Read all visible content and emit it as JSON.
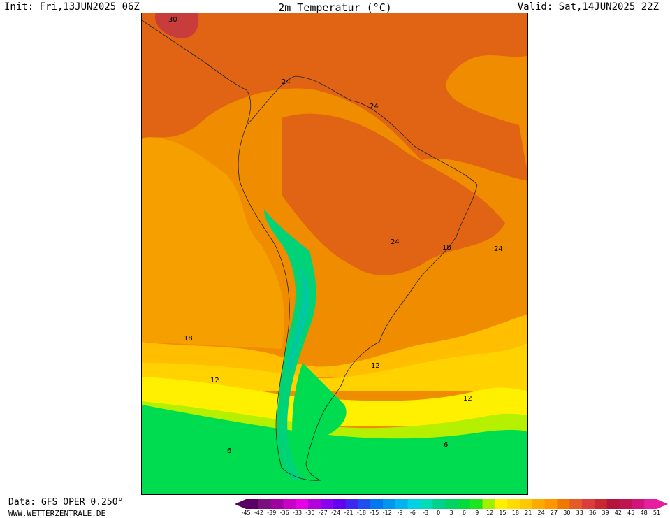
{
  "header": {
    "init": "Init: Fri,13JUN2025 06Z",
    "title": "2m Temperatur (°C)",
    "valid": "Valid: Sat,14JUN2025 22Z"
  },
  "footer": {
    "data_source": "Data: GFS OPER 0.250°",
    "website": "WWW.WETTERZENTRALE.DE"
  },
  "map": {
    "region": "South America",
    "contour_labels": [
      "30",
      "24",
      "24",
      "24",
      "18",
      "24",
      "18",
      "12",
      "12",
      "12",
      "6",
      "6"
    ]
  },
  "legend": {
    "ticks": [
      "-45",
      "-42",
      "-39",
      "-36",
      "-33",
      "-30",
      "-27",
      "-24",
      "-21",
      "-18",
      "-15",
      "-12",
      "-9",
      "-6",
      "-3",
      "0",
      "3",
      "6",
      "9",
      "12",
      "15",
      "18",
      "21",
      "24",
      "27",
      "30",
      "33",
      "36",
      "39",
      "42",
      "45",
      "48",
      "51"
    ],
    "colors": [
      "#5a0064",
      "#78107e",
      "#a000a0",
      "#c800c8",
      "#e600e6",
      "#b400dc",
      "#8c00f0",
      "#6400f0",
      "#3c28f0",
      "#1e50f0",
      "#0078f0",
      "#0096f0",
      "#00b4f0",
      "#00d2e6",
      "#00dcb4",
      "#00d28c",
      "#00d264",
      "#00dc3c",
      "#1ee61e",
      "#a0f000",
      "#fff000",
      "#ffdc00",
      "#ffc800",
      "#ffaa00",
      "#ff9600",
      "#f07800",
      "#e65a28",
      "#dc3c3c",
      "#c82832",
      "#b4143c",
      "#be1450",
      "#d2147a",
      "#e61ea0"
    ],
    "colors_note_removed": true
  },
  "colors": {
    "t30": "#c83c3c",
    "t27": "#e06414",
    "t24": "#f08c00",
    "t21": "#f5a000",
    "t18": "#ffbe00",
    "t15": "#ffd200",
    "t12": "#fff000",
    "t9": "#b4f000",
    "t6": "#00dc50",
    "t3": "#00d278",
    "t0": "#00c8a0"
  }
}
